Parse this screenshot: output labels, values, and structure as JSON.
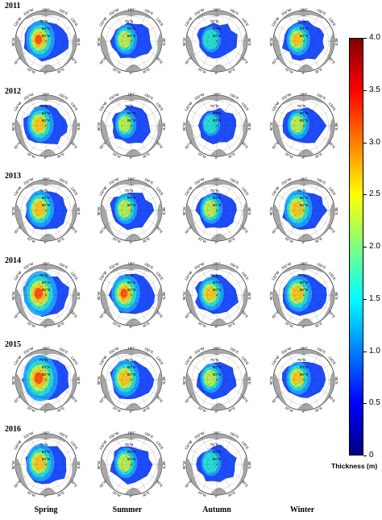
{
  "years": [
    "2011",
    "2012",
    "2013",
    "2014",
    "2015",
    "2016"
  ],
  "seasons": [
    "Spring",
    "Summer",
    "Autumn",
    "Winter"
  ],
  "map_labels": {
    "lon_180": "180°",
    "lon_150W": "150°W",
    "lon_150E": "150°E",
    "lon_120W": "120°W",
    "lon_120E": "120°E",
    "lon_90W": "90°W",
    "lon_90E": "90°E",
    "lon_60W": "60°W",
    "lon_60E": "60°E",
    "lon_30W": "30°W",
    "lon_30E": "30°E",
    "lon_0": "0°",
    "lat_75": "75°N",
    "lat_80": "80°N",
    "lat_85": "85°N"
  },
  "maps": [
    {
      "year": "2011",
      "season": "Spring",
      "thickness_level": 0.62
    },
    {
      "year": "2011",
      "season": "Summer",
      "thickness_level": 0.4
    },
    {
      "year": "2011",
      "season": "Autumn",
      "thickness_level": 0.28
    },
    {
      "year": "2011",
      "season": "Winter",
      "thickness_level": 0.45
    },
    {
      "year": "2012",
      "season": "Spring",
      "thickness_level": 0.55
    },
    {
      "year": "2012",
      "season": "Summer",
      "thickness_level": 0.35
    },
    {
      "year": "2012",
      "season": "Autumn",
      "thickness_level": 0.22
    },
    {
      "year": "2012",
      "season": "Winter",
      "thickness_level": 0.38
    },
    {
      "year": "2013",
      "season": "Spring",
      "thickness_level": 0.58
    },
    {
      "year": "2013",
      "season": "Summer",
      "thickness_level": 0.42
    },
    {
      "year": "2013",
      "season": "Autumn",
      "thickness_level": 0.4
    },
    {
      "year": "2013",
      "season": "Winter",
      "thickness_level": 0.6
    },
    {
      "year": "2014",
      "season": "Spring",
      "thickness_level": 0.78
    },
    {
      "year": "2014",
      "season": "Summer",
      "thickness_level": 0.62
    },
    {
      "year": "2014",
      "season": "Autumn",
      "thickness_level": 0.5
    },
    {
      "year": "2014",
      "season": "Winter",
      "thickness_level": 0.58
    },
    {
      "year": "2015",
      "season": "Spring",
      "thickness_level": 0.82
    },
    {
      "year": "2015",
      "season": "Summer",
      "thickness_level": 0.58
    },
    {
      "year": "2015",
      "season": "Autumn",
      "thickness_level": 0.38
    },
    {
      "year": "2015",
      "season": "Winter",
      "thickness_level": 0.48
    },
    {
      "year": "2016",
      "season": "Spring",
      "thickness_level": 0.6
    },
    {
      "year": "2016",
      "season": "Summer",
      "thickness_level": 0.42
    },
    {
      "year": "2016",
      "season": "Autumn",
      "thickness_level": 0.3
    }
  ],
  "colorbar": {
    "title": "Thickness (m)",
    "min": 0,
    "max": 4,
    "ticks": [
      "4.0",
      "3.5",
      "3.0",
      "2.5",
      "2.0",
      "1.5",
      "1.0",
      "0.5",
      "0"
    ],
    "colors": [
      "#00007f",
      "#0000ff",
      "#007fff",
      "#00ffff",
      "#7fff7f",
      "#ffff00",
      "#ff7f00",
      "#ff0000",
      "#7f0000"
    ]
  }
}
